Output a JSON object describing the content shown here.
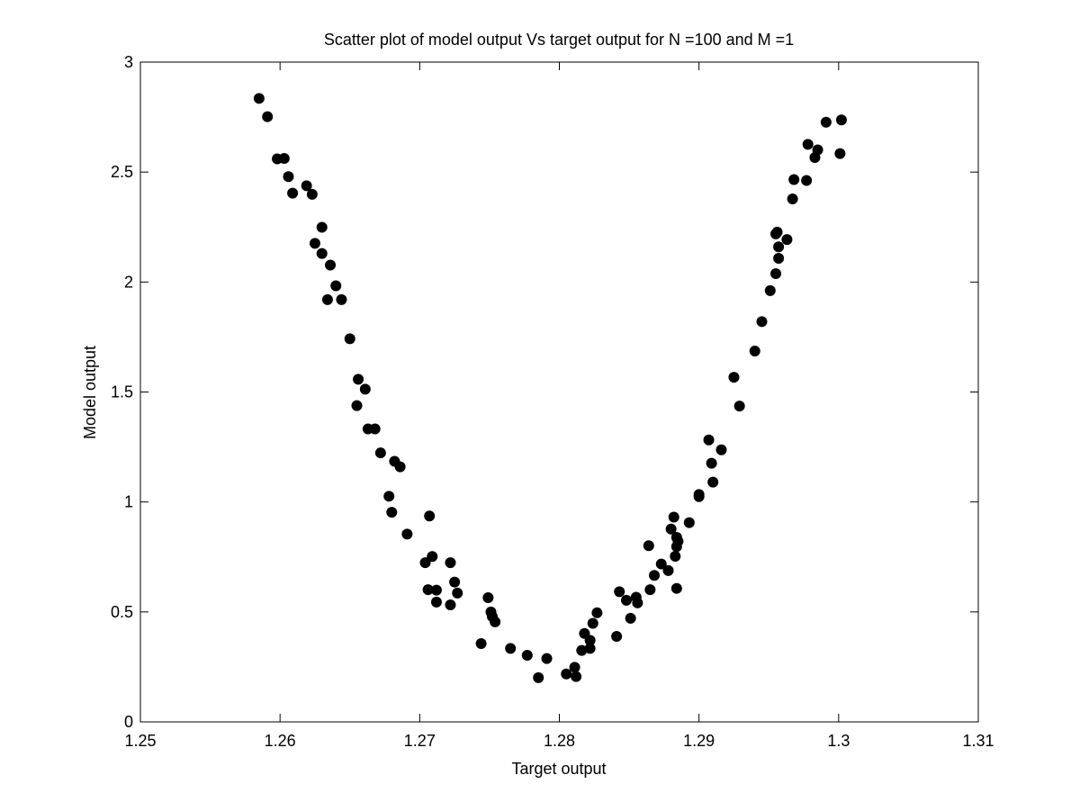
{
  "chart_data": {
    "type": "scatter",
    "title": "Scatter plot of model output Vs target output for N =100 and M =1",
    "xlabel": "Target output",
    "ylabel": "Model output",
    "xlim": [
      1.25,
      1.31
    ],
    "ylim": [
      0,
      3
    ],
    "xticks": [
      1.25,
      1.26,
      1.27,
      1.28,
      1.29,
      1.3,
      1.31
    ],
    "xtick_labels": [
      "1.25",
      "1.26",
      "1.27",
      "1.28",
      "1.29",
      "1.3",
      "1.31"
    ],
    "yticks": [
      0,
      0.5,
      1,
      1.5,
      2,
      2.5,
      3
    ],
    "ytick_labels": [
      "0",
      "0.5",
      "1",
      "1.5",
      "2",
      "2.5",
      "3"
    ],
    "grid": false,
    "marker_color": "#000000",
    "series": [
      {
        "points": [
          [
            1.2585,
            2.835
          ],
          [
            1.2591,
            2.752
          ],
          [
            1.2598,
            2.56
          ],
          [
            1.2603,
            2.562
          ],
          [
            1.2606,
            2.479
          ],
          [
            1.2609,
            2.404
          ],
          [
            1.2619,
            2.438
          ],
          [
            1.2623,
            2.399
          ],
          [
            1.2625,
            2.176
          ],
          [
            1.263,
            2.249
          ],
          [
            1.263,
            2.13
          ],
          [
            1.2636,
            2.077
          ],
          [
            1.2634,
            1.92
          ],
          [
            1.264,
            1.983
          ],
          [
            1.2644,
            1.92
          ],
          [
            1.265,
            1.742
          ],
          [
            1.2656,
            1.558
          ],
          [
            1.2655,
            1.438
          ],
          [
            1.2661,
            1.513
          ],
          [
            1.2663,
            1.332
          ],
          [
            1.2668,
            1.332
          ],
          [
            1.2672,
            1.223
          ],
          [
            1.2678,
            1.026
          ],
          [
            1.268,
            0.953
          ],
          [
            1.2682,
            1.185
          ],
          [
            1.2686,
            1.16
          ],
          [
            1.2691,
            0.854
          ],
          [
            1.2704,
            0.724
          ],
          [
            1.2707,
            0.936
          ],
          [
            1.2706,
            0.601
          ],
          [
            1.2709,
            0.752
          ],
          [
            1.2712,
            0.599
          ],
          [
            1.2712,
            0.545
          ],
          [
            1.2722,
            0.532
          ],
          [
            1.2722,
            0.724
          ],
          [
            1.2725,
            0.636
          ],
          [
            1.2727,
            0.586
          ],
          [
            1.2744,
            0.356
          ],
          [
            1.2749,
            0.565
          ],
          [
            1.2751,
            0.5
          ],
          [
            1.2752,
            0.479
          ],
          [
            1.2754,
            0.455
          ],
          [
            1.2765,
            0.334
          ],
          [
            1.2777,
            0.303
          ],
          [
            1.2785,
            0.201
          ],
          [
            1.2791,
            0.288
          ],
          [
            1.2805,
            0.218
          ],
          [
            1.2811,
            0.248
          ],
          [
            1.2812,
            0.206
          ],
          [
            1.2816,
            0.325
          ],
          [
            1.2818,
            0.402
          ],
          [
            1.2822,
            0.334
          ],
          [
            1.2822,
            0.371
          ],
          [
            1.2824,
            0.448
          ],
          [
            1.2827,
            0.496
          ],
          [
            1.2841,
            0.389
          ],
          [
            1.2843,
            0.592
          ],
          [
            1.2848,
            0.553
          ],
          [
            1.2851,
            0.471
          ],
          [
            1.2855,
            0.567
          ],
          [
            1.2856,
            0.541
          ],
          [
            1.2864,
            0.801
          ],
          [
            1.2865,
            0.601
          ],
          [
            1.2868,
            0.666
          ],
          [
            1.2873,
            0.718
          ],
          [
            1.2878,
            0.688
          ],
          [
            1.288,
            0.877
          ],
          [
            1.2882,
            0.931
          ],
          [
            1.2883,
            0.753
          ],
          [
            1.2884,
            0.797
          ],
          [
            1.2884,
            0.839
          ],
          [
            1.2884,
            0.607
          ],
          [
            1.2885,
            0.821
          ],
          [
            1.2893,
            0.906
          ],
          [
            1.29,
            1.024
          ],
          [
            1.29,
            1.034
          ],
          [
            1.2907,
            1.282
          ],
          [
            1.2909,
            1.176
          ],
          [
            1.291,
            1.09
          ],
          [
            1.2916,
            1.237
          ],
          [
            1.2925,
            1.567
          ],
          [
            1.2929,
            1.436
          ],
          [
            1.294,
            1.686
          ],
          [
            1.2945,
            1.82
          ],
          [
            1.2951,
            1.961
          ],
          [
            1.2955,
            2.038
          ],
          [
            1.2955,
            2.219
          ],
          [
            1.2956,
            2.227
          ],
          [
            1.2957,
            2.108
          ],
          [
            1.2957,
            2.16
          ],
          [
            1.2963,
            2.193
          ],
          [
            1.2967,
            2.378
          ],
          [
            1.2968,
            2.466
          ],
          [
            1.2977,
            2.462
          ],
          [
            1.2978,
            2.626
          ],
          [
            1.2983,
            2.566
          ],
          [
            1.2985,
            2.601
          ],
          [
            1.2991,
            2.727
          ],
          [
            1.3001,
            2.584
          ],
          [
            1.3002,
            2.737
          ]
        ]
      }
    ]
  }
}
